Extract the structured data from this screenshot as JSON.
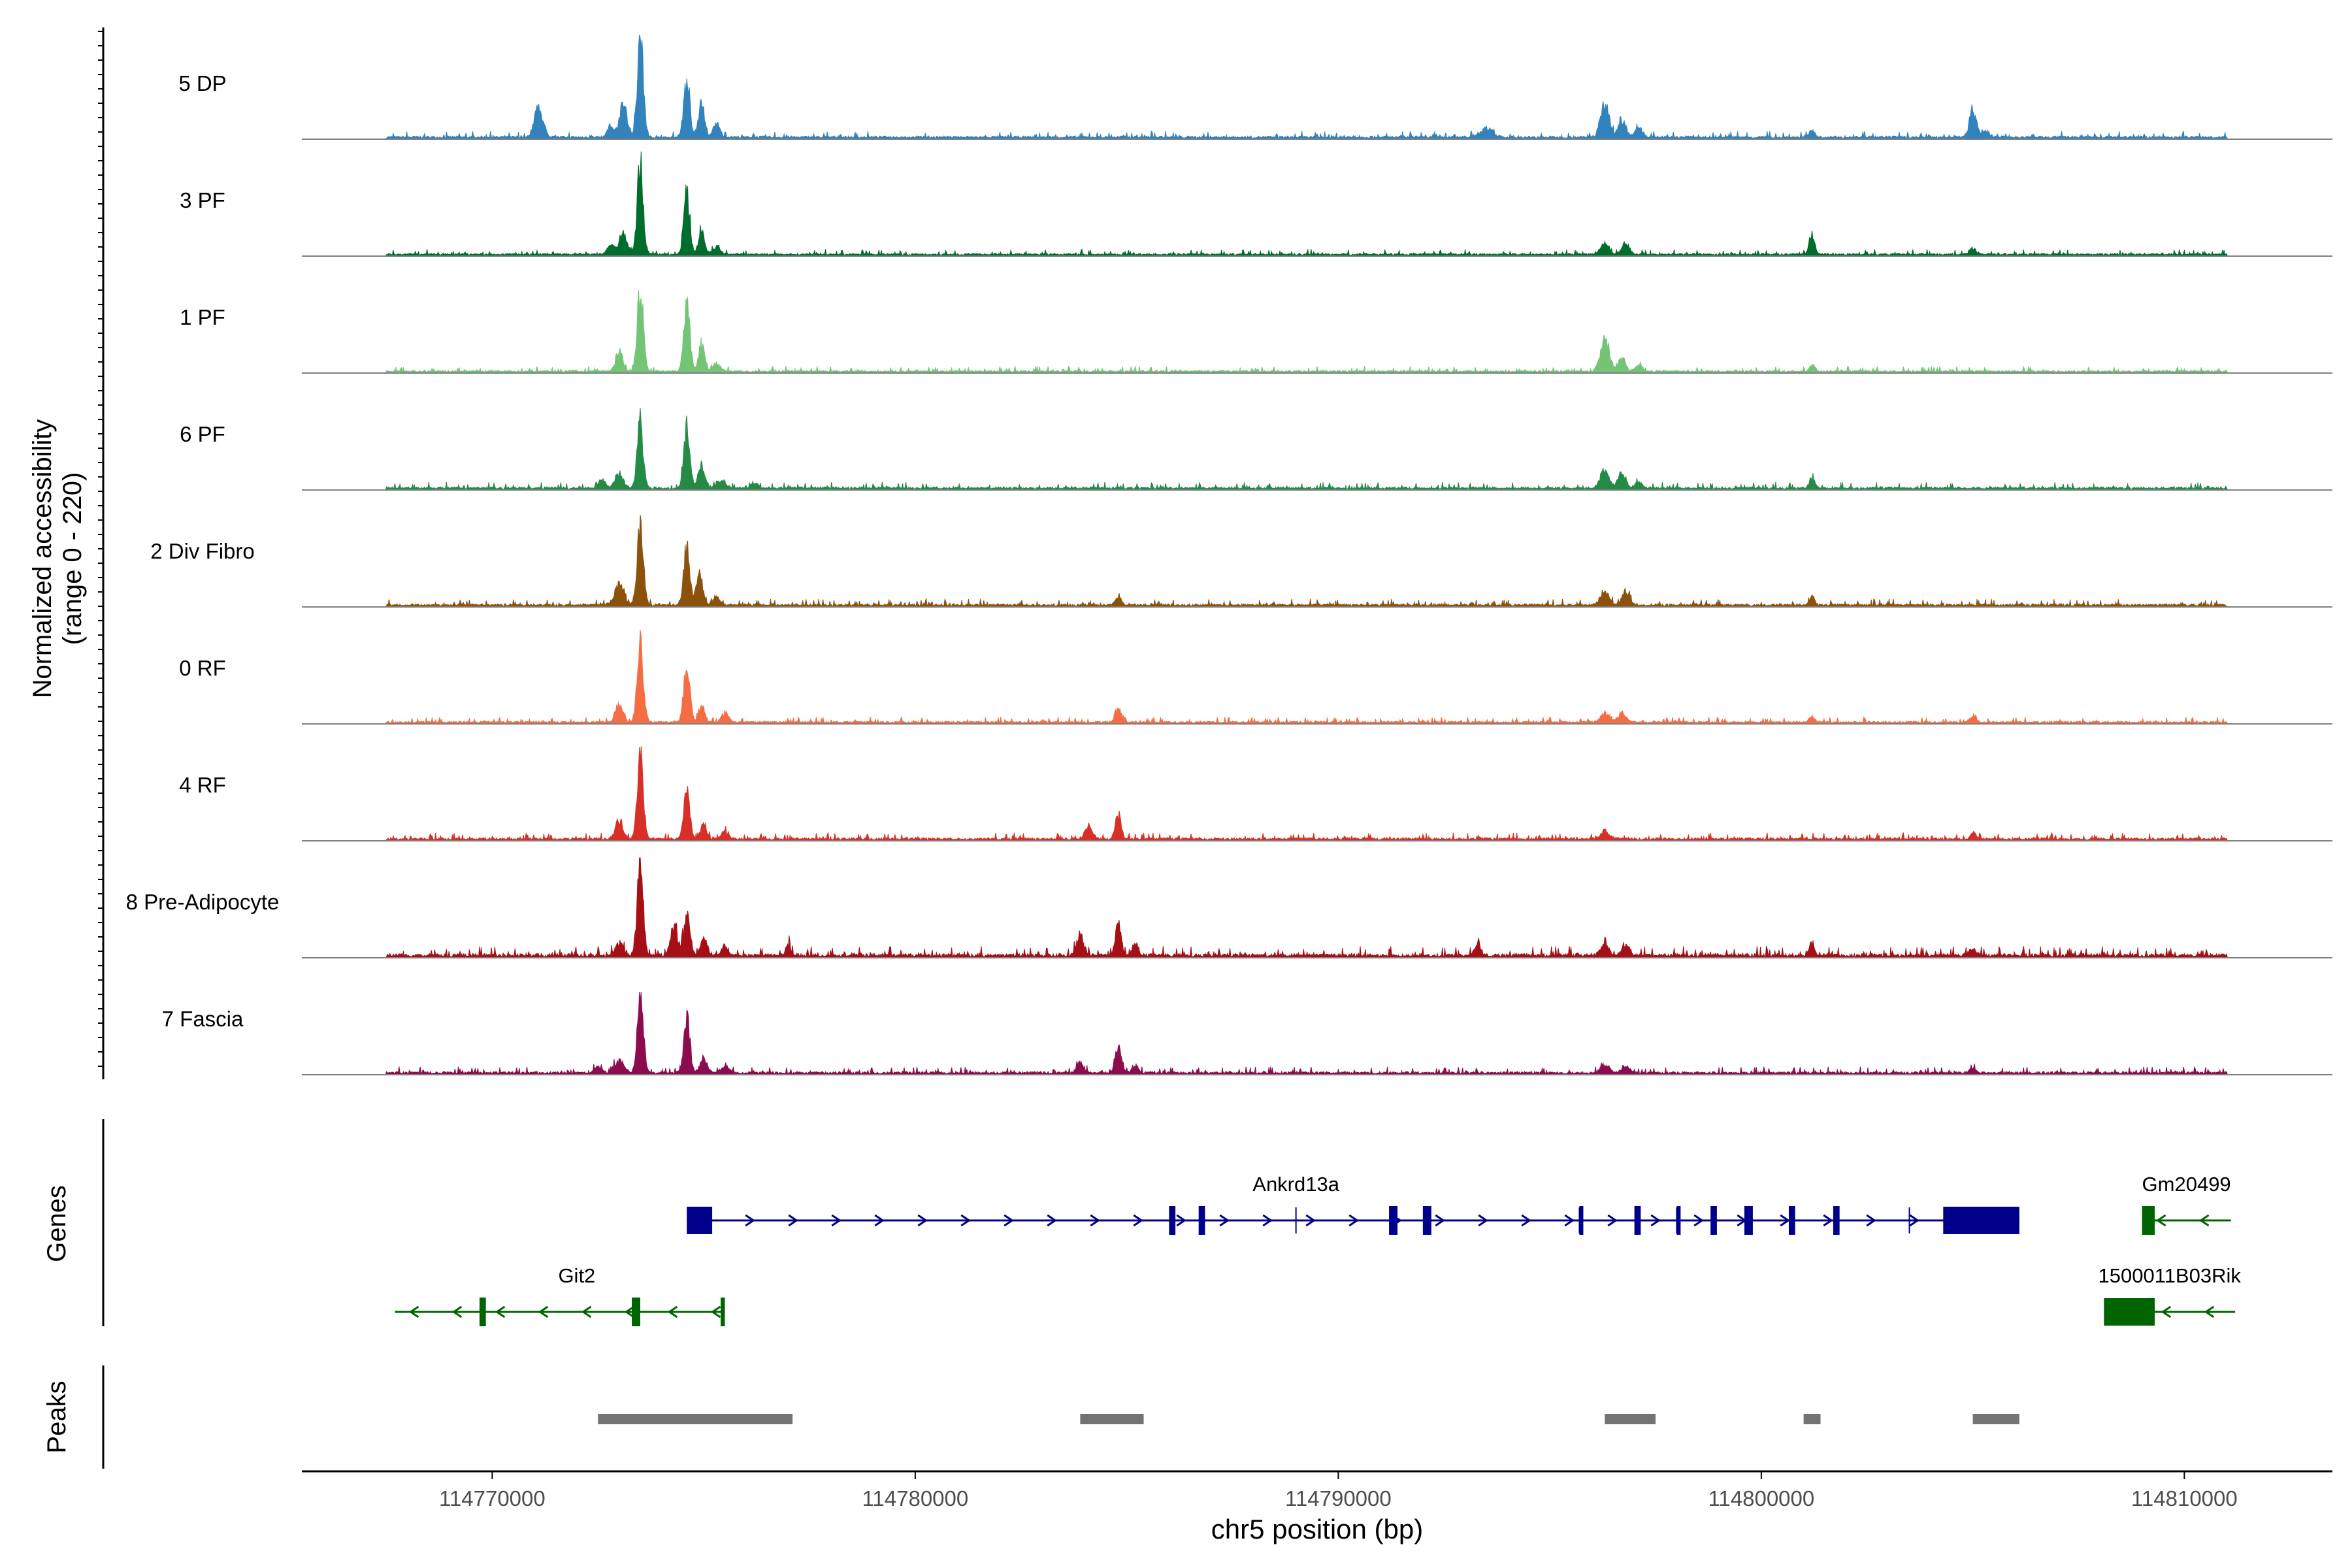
{
  "chart_data": {
    "type": "area",
    "title": "",
    "ylabel": "Normalized accessibility",
    "ylabel_range": "(range 0 - 220)",
    "ylim": [
      0,
      220
    ],
    "xlabel": "chr5 position (bp)",
    "xlim": [
      114765500,
      114813500
    ],
    "xticks": [
      114770000,
      114780000,
      114790000,
      114800000,
      114810000
    ],
    "xtick_labels": [
      "114770000",
      "114780000",
      "114790000",
      "114800000",
      "114810000"
    ],
    "coverage_baseline": 2,
    "tracks": [
      {
        "name": "5 DP",
        "color": "#3182bd",
        "peaks": [
          [
            114771100,
            60,
            100
          ],
          [
            114773500,
            205,
            70
          ],
          [
            114773100,
            65,
            90
          ],
          [
            114772800,
            22,
            80
          ],
          [
            114774600,
            130,
            70
          ],
          [
            114774950,
            70,
            70
          ],
          [
            114775300,
            28,
            80
          ],
          [
            114793500,
            18,
            150
          ],
          [
            114796300,
            70,
            100
          ],
          [
            114796700,
            35,
            90
          ],
          [
            114797100,
            20,
            90
          ],
          [
            114801200,
            14,
            60
          ],
          [
            114805000,
            58,
            80
          ],
          [
            114805300,
            12,
            90
          ]
        ],
        "noise": [
          114767500,
          114811000,
          6
        ]
      },
      {
        "name": "3 PF",
        "color": "#006d2c",
        "peaks": [
          [
            114773500,
            185,
            70
          ],
          [
            114773100,
            40,
            100
          ],
          [
            114772800,
            20,
            80
          ],
          [
            114774600,
            125,
            70
          ],
          [
            114774950,
            45,
            70
          ],
          [
            114775300,
            15,
            90
          ],
          [
            114796300,
            22,
            100
          ],
          [
            114796800,
            25,
            90
          ],
          [
            114801200,
            45,
            60
          ],
          [
            114805000,
            12,
            80
          ]
        ],
        "noise": [
          114767500,
          114811000,
          5
        ]
      },
      {
        "name": "1 PF",
        "color": "#74c476",
        "peaks": [
          [
            114773500,
            175,
            70
          ],
          [
            114773000,
            45,
            80
          ],
          [
            114774600,
            140,
            70
          ],
          [
            114774950,
            55,
            70
          ],
          [
            114775300,
            15,
            90
          ],
          [
            114796300,
            68,
            100
          ],
          [
            114796700,
            25,
            90
          ],
          [
            114797100,
            12,
            90
          ],
          [
            114801200,
            14,
            60
          ]
        ],
        "noise": [
          114767500,
          114811000,
          5
        ]
      },
      {
        "name": "6 PF",
        "color": "#238b45",
        "peaks": [
          [
            114773500,
            135,
            70
          ],
          [
            114773000,
            30,
            100
          ],
          [
            114772600,
            18,
            80
          ],
          [
            114774600,
            120,
            70
          ],
          [
            114774950,
            45,
            80
          ],
          [
            114775400,
            18,
            100
          ],
          [
            114776200,
            10,
            80
          ],
          [
            114796300,
            38,
            100
          ],
          [
            114796700,
            30,
            90
          ],
          [
            114797100,
            14,
            80
          ],
          [
            114801200,
            22,
            60
          ]
        ],
        "noise": [
          114767500,
          114811000,
          6
        ]
      },
      {
        "name": "2 Div Fibro",
        "color": "#8c510a",
        "peaks": [
          [
            114773500,
            175,
            70
          ],
          [
            114773000,
            40,
            110
          ],
          [
            114774600,
            120,
            70
          ],
          [
            114774900,
            70,
            70
          ],
          [
            114775300,
            18,
            80
          ],
          [
            114784800,
            16,
            70
          ],
          [
            114796300,
            28,
            100
          ],
          [
            114796800,
            28,
            90
          ],
          [
            114801200,
            18,
            60
          ]
        ],
        "noise": [
          114767500,
          114811000,
          6
        ]
      },
      {
        "name": "0 RF",
        "color": "#f46d43",
        "peaks": [
          [
            114773500,
            175,
            70
          ],
          [
            114773000,
            40,
            80
          ],
          [
            114774600,
            120,
            70
          ],
          [
            114774950,
            35,
            70
          ],
          [
            114775500,
            18,
            80
          ],
          [
            114784800,
            32,
            70
          ],
          [
            114796300,
            18,
            100
          ],
          [
            114796700,
            18,
            90
          ],
          [
            114801200,
            10,
            60
          ],
          [
            114805000,
            10,
            80
          ]
        ],
        "noise": [
          114767500,
          114811000,
          5
        ]
      },
      {
        "name": "4 RF",
        "color": "#d73027",
        "peaks": [
          [
            114773500,
            165,
            70
          ],
          [
            114773000,
            35,
            90
          ],
          [
            114774600,
            100,
            70
          ],
          [
            114775000,
            30,
            70
          ],
          [
            114775500,
            15,
            80
          ],
          [
            114784100,
            26,
            90
          ],
          [
            114784800,
            48,
            70
          ],
          [
            114796300,
            18,
            100
          ],
          [
            114805000,
            14,
            60
          ]
        ],
        "noise": [
          114767500,
          114811000,
          6
        ]
      },
      {
        "name": "8 Pre-Adipocyte",
        "color": "#a50f15",
        "peaks": [
          [
            114773500,
            185,
            70
          ],
          [
            114773000,
            30,
            80
          ],
          [
            114774300,
            60,
            80
          ],
          [
            114774600,
            85,
            70
          ],
          [
            114775000,
            40,
            80
          ],
          [
            114775500,
            18,
            80
          ],
          [
            114777000,
            22,
            60
          ],
          [
            114783900,
            45,
            80
          ],
          [
            114784800,
            65,
            70
          ],
          [
            114785200,
            25,
            70
          ],
          [
            114793300,
            25,
            70
          ],
          [
            114796300,
            22,
            90
          ],
          [
            114796800,
            22,
            90
          ],
          [
            114801200,
            28,
            60
          ],
          [
            114805000,
            12,
            80
          ]
        ],
        "noise": [
          114767500,
          114811000,
          9
        ]
      },
      {
        "name": "7 Fascia",
        "color": "#8c0d4f",
        "peaks": [
          [
            114773500,
            155,
            70
          ],
          [
            114773000,
            25,
            110
          ],
          [
            114772500,
            12,
            80
          ],
          [
            114774600,
            115,
            70
          ],
          [
            114775000,
            30,
            80
          ],
          [
            114775500,
            14,
            90
          ],
          [
            114783900,
            22,
            80
          ],
          [
            114784800,
            60,
            70
          ],
          [
            114785200,
            15,
            70
          ],
          [
            114796300,
            18,
            100
          ],
          [
            114796800,
            14,
            90
          ],
          [
            114805000,
            10,
            60
          ]
        ],
        "noise": [
          114767500,
          114811000,
          6
        ]
      }
    ],
    "genes": [
      {
        "name": "Ankrd13a",
        "strand": "+",
        "color": "#00008b",
        "start": 114774600,
        "end": 114806100,
        "row": 1,
        "exons": [
          [
            114774600,
            114775200
          ],
          [
            114786000,
            114786150
          ],
          [
            114786700,
            114786850
          ],
          [
            114791200,
            114791400
          ],
          [
            114792000,
            114792200
          ],
          [
            114795700,
            114795750
          ],
          [
            114797000,
            114797150
          ],
          [
            114798000,
            114798050
          ],
          [
            114798800,
            114798950
          ],
          [
            114799600,
            114799800
          ],
          [
            114800650,
            114800800
          ],
          [
            114801700,
            114801850
          ],
          [
            114804300,
            114806100
          ]
        ],
        "thin": [
          114789000,
          114795700,
          114798000,
          114803500
        ]
      },
      {
        "name": "Gm20499",
        "strand": "-",
        "color": "#006400",
        "start": 114809000,
        "end": 114811100,
        "row": 1,
        "exons": [
          [
            114809000,
            114809300
          ]
        ]
      },
      {
        "name": "Git2",
        "strand": "-",
        "color": "#006400",
        "start": 114767700,
        "end": 114775500,
        "row": 2,
        "exons": [
          [
            114769700,
            114769850
          ],
          [
            114773300,
            114773500
          ],
          [
            114775400,
            114775500
          ]
        ]
      },
      {
        "name": "1500011B03Rik",
        "strand": "-",
        "color": "#006400",
        "start": 114808100,
        "end": 114811200,
        "row": 2,
        "exons": [
          [
            114808100,
            114809300
          ]
        ]
      }
    ],
    "peak_regions": [
      [
        114772500,
        114777100
      ],
      [
        114783900,
        114785400
      ],
      [
        114796300,
        114797500
      ],
      [
        114801000,
        114801400
      ],
      [
        114805000,
        114806100
      ]
    ],
    "genes_label": "Genes",
    "peaks_label": "Peaks"
  }
}
